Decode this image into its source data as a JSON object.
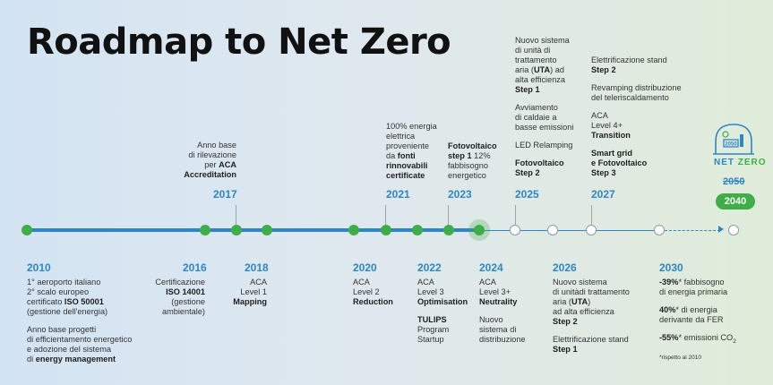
{
  "title": "Roadmap to Net Zero",
  "colors": {
    "blue": "#2f86c6",
    "green": "#3fae49"
  },
  "logo": {
    "year": "2050",
    "net": "NET",
    "zero": "ZERO"
  },
  "final": {
    "old_year": "2050",
    "new_year": "2040"
  },
  "above": {
    "y2017": {
      "year": "2017",
      "l1": "Anno base",
      "l2": "di rilevazione",
      "l3": "per",
      "l3b": "ACA",
      "l4": "Accreditation"
    },
    "y2021": {
      "year": "2021",
      "l1": "100% energia",
      "l2": "elettrica",
      "l3": "proveniente",
      "l4a": "da",
      "l4b": "fonti",
      "l5": "rinnovabili",
      "l6": "certificate"
    },
    "y2023": {
      "year": "2023",
      "l1": "Fotovoltaico",
      "l2a": "step 1",
      "l2b": "12%",
      "l3": "fabbisogno",
      "l4": "energetico"
    },
    "y2025": {
      "year": "2025",
      "a1": "Nuovo sistema",
      "a2": "di unità di",
      "a3": "trattamento",
      "a4a": "aria (",
      "a4b": "UTA",
      "a4c": ") ad",
      "a5": "alta efficienza",
      "a6": "Step 1",
      "b1": "Avviamento",
      "b2": "di caldaie a",
      "b3": "basse emissioni",
      "c1": "LED Relamping",
      "d1": "Fotovoltaico",
      "d2": "Step 2"
    },
    "y2027": {
      "year": "2027",
      "a1": "Elettrificazione stand",
      "a2": "Step 2",
      "b1": "Revamping distribuzione",
      "b2": "del teleriscaldamento",
      "c1": "ACA",
      "c2": "Level 4+",
      "c3": "Transition",
      "d1": "Smart grid",
      "d2": "e Fotovoltaico",
      "d3": "Step 3"
    }
  },
  "below": {
    "y2010": {
      "year": "2010",
      "a1": "1° aeroporto italiano",
      "a2": "2° scalo europeo",
      "a3a": "certificato",
      "a3b": "ISO 50001",
      "a4": "(gestione dell'energia)",
      "b1": "Anno base progetti",
      "b2": "di efficientamento energetico",
      "b3": "e adozione del sistema",
      "b4a": "di",
      "b4b": "energy management"
    },
    "y2016": {
      "year": "2016",
      "l1": "Certificazione",
      "l2": "ISO 14001",
      "l3": "(gestione",
      "l4": "ambientale)"
    },
    "y2018": {
      "year": "2018",
      "l1": "ACA",
      "l2": "Level 1",
      "l3": "Mapping"
    },
    "y2020": {
      "year": "2020",
      "l1": "ACA",
      "l2": "Level 2",
      "l3": "Reduction"
    },
    "y2022": {
      "year": "2022",
      "l1": "ACA",
      "l2": "Level 3",
      "l3": "Optimisation",
      "l4": "TULIPS",
      "l5": "Program",
      "l6": "Startup"
    },
    "y2024": {
      "year": "2024",
      "l1": "ACA",
      "l2": "Level 3+",
      "l3": "Neutrality",
      "l4": "Nuovo",
      "l5": "sistema di",
      "l6": "distribuzione"
    },
    "y2026": {
      "year": "2026",
      "a1": "Nuovo sistema",
      "a2": "di unitàdi trattamento",
      "a3a": "aria (",
      "a3b": "UTA",
      "a3c": ")",
      "a4": "ad alta efficienza",
      "a5": "Step 2",
      "b1": "Elettrificazione stand",
      "b2": "Step 1"
    },
    "y2030": {
      "year": "2030",
      "a1a": "-39%",
      "a1b": "* fabbisogno",
      "a2": "di energia primaria",
      "b1a": "40%",
      "b1b": "* di energia",
      "b2": "derivante da FER",
      "c1a": "-55%",
      "c1b": "* emissioni CO",
      "c1c": "2",
      "note": "*rispetto al 2010"
    }
  }
}
